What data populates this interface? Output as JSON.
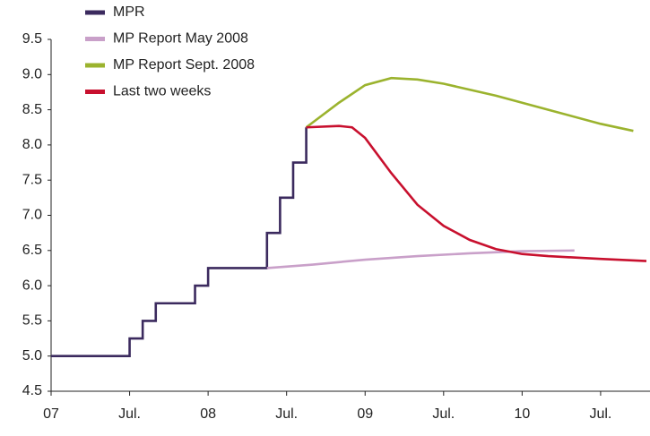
{
  "chart_data": {
    "type": "line",
    "xlim": [
      0,
      45.5
    ],
    "xticks": [
      {
        "value": 0,
        "label": "07"
      },
      {
        "value": 6,
        "label": "Jul."
      },
      {
        "value": 12,
        "label": "08"
      },
      {
        "value": 18,
        "label": "Jul."
      },
      {
        "value": 24,
        "label": "09"
      },
      {
        "value": 30,
        "label": "Jul."
      },
      {
        "value": 36,
        "label": "10"
      },
      {
        "value": 42,
        "label": "Jul."
      }
    ],
    "ylim": [
      4.5,
      9.5
    ],
    "yticks": [
      4.5,
      {
        "value": 5,
        "label": "5.0"
      },
      5.5,
      {
        "value": 6,
        "label": "6.0"
      },
      6.5,
      {
        "value": 7,
        "label": "7.0"
      },
      7.5,
      {
        "value": 8,
        "label": "8.0"
      },
      8.5,
      {
        "value": 9,
        "label": "9.0"
      },
      9.5
    ],
    "grid": false,
    "legend": "top-left",
    "series": [
      {
        "name": "MPR",
        "color": "#3b2a5e",
        "x": [
          0,
          6,
          6,
          7,
          7,
          8,
          8,
          11,
          11,
          12,
          12,
          16.5,
          16.5,
          17.5,
          17.5,
          18.5,
          18.5,
          19.5,
          19.5
        ],
        "values": [
          5,
          5,
          5.25,
          5.25,
          5.5,
          5.5,
          5.75,
          5.75,
          6,
          6,
          6.25,
          6.25,
          6.75,
          6.75,
          7.25,
          7.25,
          7.75,
          7.75,
          8.25
        ]
      },
      {
        "name": "MP Report May 2008",
        "color": "#c9a0c9",
        "x": [
          16.5,
          20,
          24,
          28,
          32,
          36,
          40
        ],
        "values": [
          6.25,
          6.3,
          6.37,
          6.42,
          6.46,
          6.49,
          6.5
        ]
      },
      {
        "name": "MP Report Sept. 2008",
        "color": "#9bb32e",
        "x": [
          19.5,
          22,
          24,
          26,
          28,
          30,
          34,
          38,
          42,
          44.5
        ],
        "values": [
          8.25,
          8.6,
          8.85,
          8.95,
          8.93,
          8.87,
          8.7,
          8.5,
          8.3,
          8.2
        ]
      },
      {
        "name": "Last two weeks",
        "color": "#c8102e",
        "x": [
          19.5,
          22,
          23,
          24,
          26,
          28,
          30,
          32,
          34,
          36,
          38,
          42,
          45.5
        ],
        "values": [
          8.25,
          8.27,
          8.25,
          8.1,
          7.6,
          7.15,
          6.85,
          6.65,
          6.52,
          6.45,
          6.42,
          6.38,
          6.35
        ]
      }
    ]
  }
}
